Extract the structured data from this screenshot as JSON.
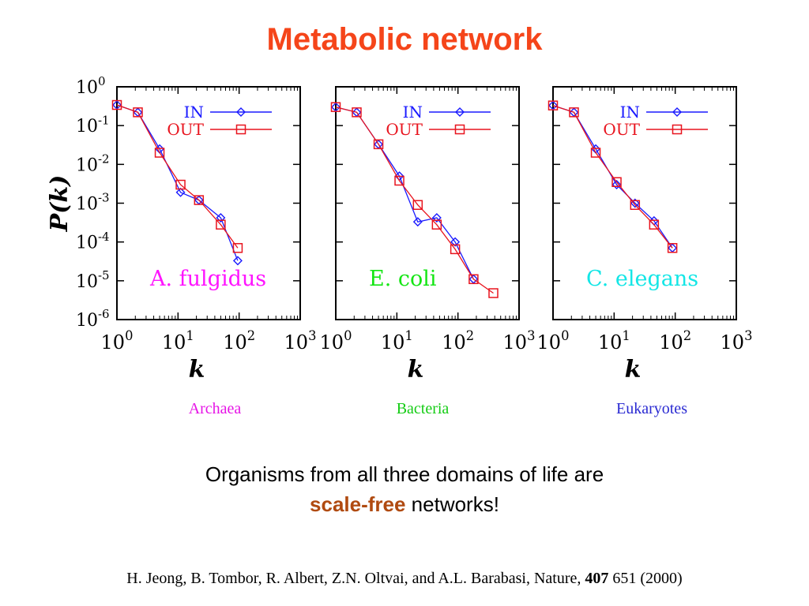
{
  "slide": {
    "title": "Metabolic network",
    "message_line1": "Organisms from all three domains of life are",
    "message_emph": "scale-free",
    "message_rest": " networks!",
    "citation_pre": "H. Jeong, B. Tombor, R. Albert, Z.N. Oltvai, and A.L. Barabasi, Nature, ",
    "citation_vol": "407",
    "citation_post": " 651 (2000)"
  },
  "colors": {
    "title": "#f5451a",
    "accent": "#b04a10",
    "in_series": "#1a1aff",
    "out_series": "#e8141e"
  },
  "chart_data": [
    {
      "type": "line",
      "xscale": "log",
      "yscale": "log",
      "xlim": [
        1,
        1000
      ],
      "ylim": [
        1e-06,
        1
      ],
      "xlabel": "k",
      "ylabel": "P(k)",
      "x_ticks": [
        "10^0",
        "10^1",
        "10^2",
        "10^3"
      ],
      "y_ticks": [
        "10^0",
        "10^-1",
        "10^-2",
        "10^-3",
        "10^-4",
        "10^-5",
        "10^-6"
      ],
      "legend_position": "top-right",
      "organism": "A. fulgidus",
      "organism_color": "#ff14ff",
      "domain": "Archaea",
      "domain_color": "#e614e6",
      "series": [
        {
          "name": "IN",
          "marker": "diamond",
          "color": "#1a1aff",
          "x": [
            1,
            2.2,
            5,
            11,
            22,
            50,
            95
          ],
          "y": [
            0.34,
            0.22,
            0.025,
            0.0019,
            0.0012,
            0.00042,
            3.3e-05
          ]
        },
        {
          "name": "OUT",
          "marker": "square",
          "color": "#e8141e",
          "x": [
            1,
            2.2,
            5,
            11,
            22,
            50,
            95
          ],
          "y": [
            0.34,
            0.22,
            0.02,
            0.003,
            0.0012,
            0.00028,
            7e-05
          ]
        }
      ]
    },
    {
      "type": "line",
      "xscale": "log",
      "yscale": "log",
      "xlim": [
        1,
        1000
      ],
      "ylim": [
        1e-06,
        1
      ],
      "xlabel": "k",
      "ylabel": "",
      "x_ticks": [
        "10^0",
        "10^1",
        "10^2",
        "10^3"
      ],
      "y_ticks": [],
      "legend_position": "top-right",
      "organism": "E. coli",
      "organism_color": "#14e614",
      "domain": "Bacteria",
      "domain_color": "#14cc14",
      "series": [
        {
          "name": "IN",
          "marker": "diamond",
          "color": "#1a1aff",
          "x": [
            1,
            2.2,
            5,
            11,
            22,
            45,
            90,
            180
          ],
          "y": [
            0.3,
            0.22,
            0.033,
            0.005,
            0.00033,
            0.00042,
            0.0001,
            1.1e-05
          ]
        },
        {
          "name": "OUT",
          "marker": "square",
          "color": "#e8141e",
          "x": [
            1,
            2.2,
            5,
            11,
            22,
            45,
            90,
            180,
            380
          ],
          "y": [
            0.3,
            0.22,
            0.033,
            0.0038,
            0.0009,
            0.00028,
            6.5e-05,
            1.1e-05,
            4.8e-06
          ]
        }
      ]
    },
    {
      "type": "line",
      "xscale": "log",
      "yscale": "log",
      "xlim": [
        1,
        1000
      ],
      "ylim": [
        1e-06,
        1
      ],
      "xlabel": "k",
      "ylabel": "",
      "x_ticks": [
        "10^0",
        "10^1",
        "10^2",
        "10^3"
      ],
      "y_ticks": [],
      "legend_position": "top-right",
      "organism": "C. elegans",
      "organism_color": "#14e6e6",
      "domain": "Eukaryotes",
      "domain_color": "#2a2ad2",
      "series": [
        {
          "name": "IN",
          "marker": "diamond",
          "color": "#1a1aff",
          "x": [
            1,
            2.2,
            5,
            11,
            22,
            45,
            90
          ],
          "y": [
            0.33,
            0.22,
            0.025,
            0.003,
            0.001,
            0.00035,
            7e-05
          ]
        },
        {
          "name": "OUT",
          "marker": "square",
          "color": "#e8141e",
          "x": [
            1,
            2.2,
            5,
            11,
            22,
            45,
            90
          ],
          "y": [
            0.33,
            0.22,
            0.02,
            0.0035,
            0.0009,
            0.00028,
            7e-05
          ]
        }
      ]
    }
  ]
}
